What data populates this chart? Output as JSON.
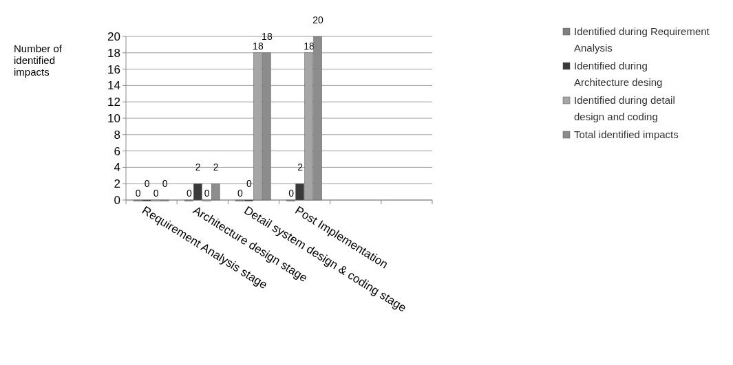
{
  "chart_data": {
    "type": "bar",
    "ylabel": "Number of identified impacts",
    "categories": [
      "Requirement Analysis stage",
      "Architecture design stage",
      "Detail system design & coding stage",
      "Post Implementation",
      null,
      null
    ],
    "series": [
      {
        "name": "Identified during Requirement Analysis",
        "color": "#7f7f7f",
        "values": [
          0,
          0,
          0,
          0,
          null,
          null
        ]
      },
      {
        "name": "Identified during Architecture desing",
        "color": "#3a3a3a",
        "values": [
          0,
          2,
          0,
          2,
          null,
          null
        ]
      },
      {
        "name": "Identified during detail design and coding",
        "color": "#a6a6a6",
        "values": [
          0,
          0,
          18,
          18,
          null,
          null
        ]
      },
      {
        "name": "Total identified impacts",
        "color": "#8c8c8c",
        "values": [
          0,
          2,
          18,
          20,
          null,
          null
        ]
      }
    ],
    "ylim": [
      0,
      20
    ],
    "yticks": [
      0,
      2,
      4,
      6,
      8,
      10,
      12,
      14,
      16,
      18,
      20
    ],
    "grid": "y",
    "legend": "right",
    "data_labels": true
  }
}
